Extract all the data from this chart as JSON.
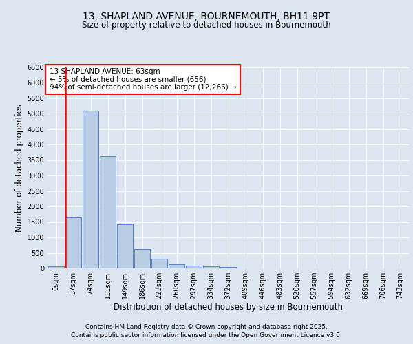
{
  "title_line1": "13, SHAPLAND AVENUE, BOURNEMOUTH, BH11 9PT",
  "title_line2": "Size of property relative to detached houses in Bournemouth",
  "xlabel": "Distribution of detached houses by size in Bournemouth",
  "ylabel": "Number of detached properties",
  "footer_line1": "Contains HM Land Registry data © Crown copyright and database right 2025.",
  "footer_line2": "Contains public sector information licensed under the Open Government Licence v3.0.",
  "annotation_title": "13 SHAPLAND AVENUE: 63sqm",
  "annotation_line1": "← 5% of detached houses are smaller (656)",
  "annotation_line2": "94% of semi-detached houses are larger (12,266) →",
  "bin_labels": [
    "0sqm",
    "37sqm",
    "74sqm",
    "111sqm",
    "149sqm",
    "186sqm",
    "223sqm",
    "260sqm",
    "297sqm",
    "334sqm",
    "372sqm",
    "409sqm",
    "446sqm",
    "483sqm",
    "520sqm",
    "557sqm",
    "594sqm",
    "632sqm",
    "669sqm",
    "706sqm",
    "743sqm"
  ],
  "bar_values": [
    60,
    1650,
    5100,
    3620,
    1430,
    620,
    310,
    140,
    100,
    70,
    50,
    0,
    0,
    0,
    0,
    0,
    0,
    0,
    0,
    0,
    0
  ],
  "bar_color": "#b8cce4",
  "bar_edge_color": "#4472c4",
  "highlight_bar_index": 1,
  "highlight_color": "#ff0000",
  "bg_color": "#dce6f1",
  "plot_bg_color": "#dce6f1",
  "ylim": [
    0,
    6500
  ],
  "yticks": [
    0,
    500,
    1000,
    1500,
    2000,
    2500,
    3000,
    3500,
    4000,
    4500,
    5000,
    5500,
    6000,
    6500
  ],
  "grid_color": "#ffffff",
  "tick_label_fontsize": 7,
  "axis_label_fontsize": 8.5,
  "title1_fontsize": 10,
  "title2_fontsize": 8.5,
  "footer_fontsize": 6.5,
  "annot_fontsize": 7.5
}
